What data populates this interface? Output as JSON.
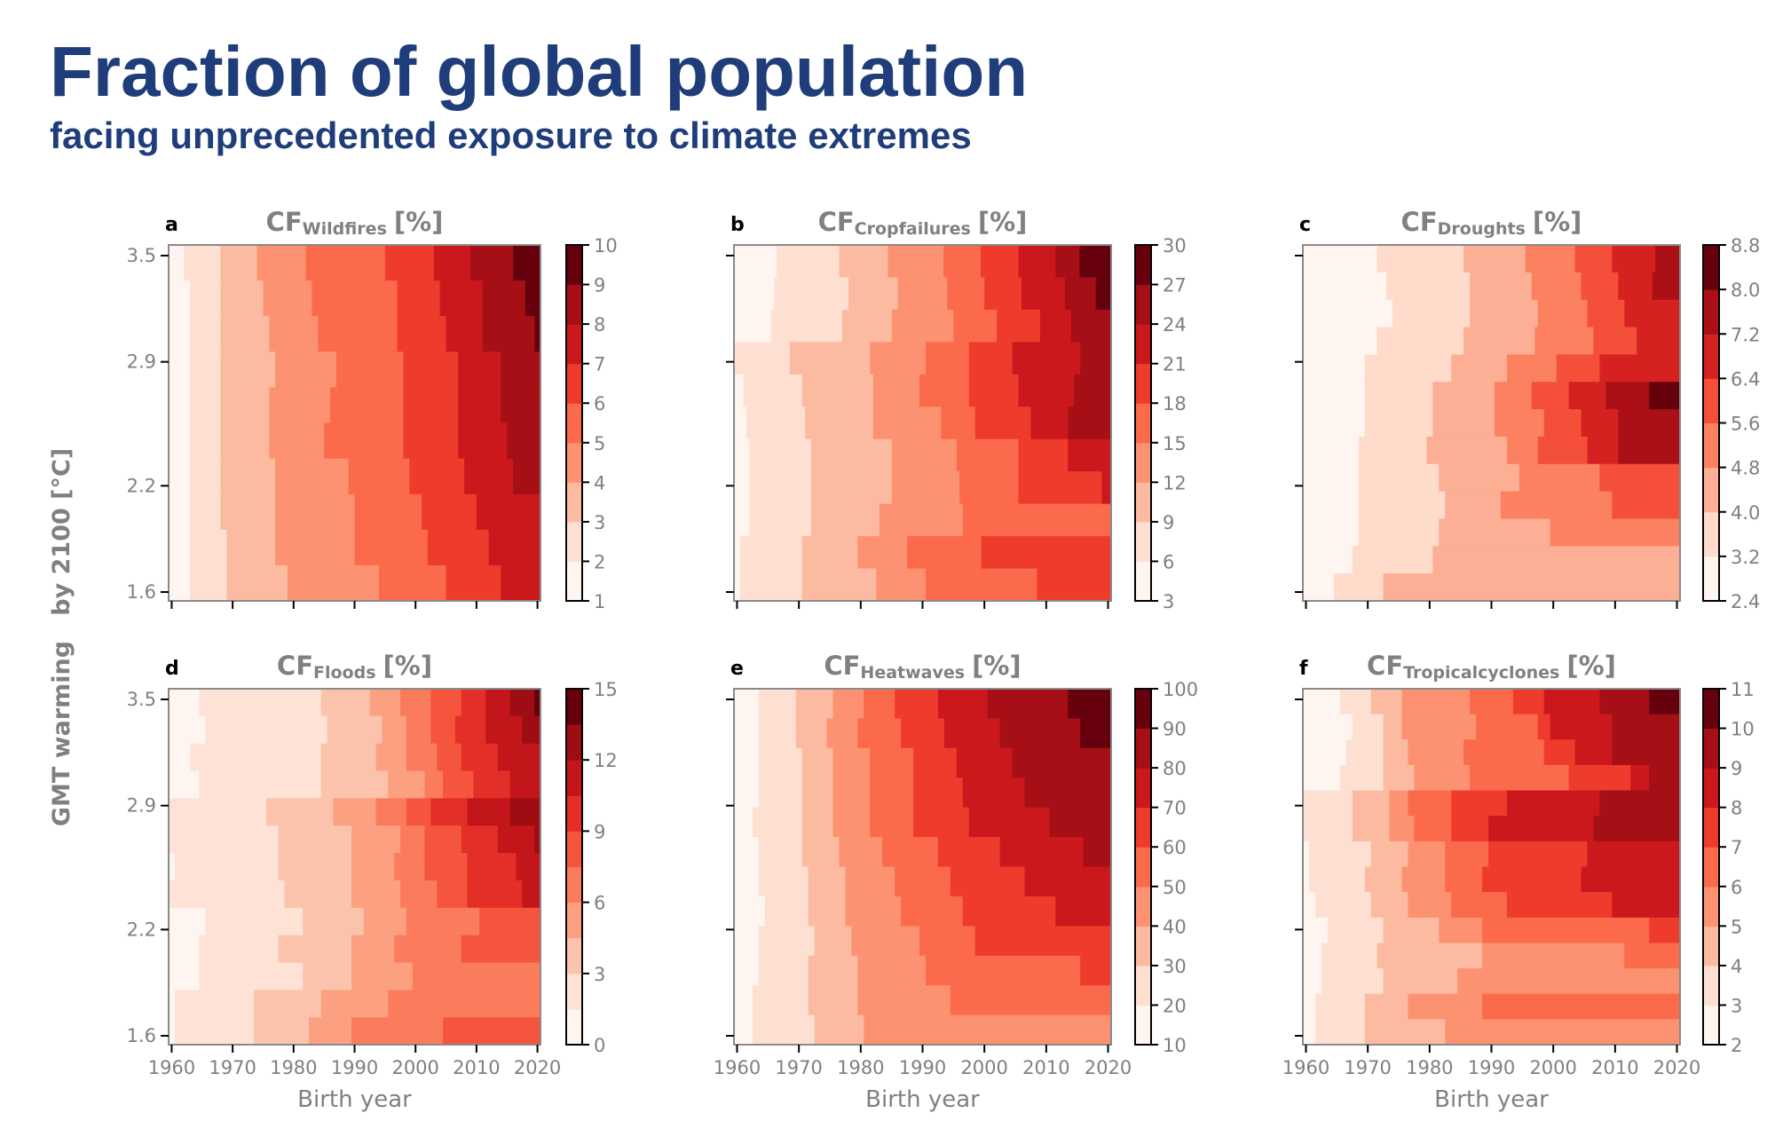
{
  "header": {
    "title": "Fraction of global population",
    "subtitle": "facing unprecedented exposure to climate extremes"
  },
  "axes": {
    "ylabel": "GMT warming   by 2100 [°C]",
    "xlabel": "Birth year"
  },
  "palette_anchors": [
    "#fff5f0",
    "#fee0d2",
    "#fcbba1",
    "#fc9272",
    "#fb6a4a",
    "#ef3b2c",
    "#cb181d",
    "#a50f15",
    "#67000d"
  ],
  "chart_data": [
    {
      "type": "heatmap",
      "letter": "a",
      "title_main": "CF",
      "title_sub": "Wildfires",
      "title_unit": "[%]",
      "xlim": [
        1959.5,
        2020.5
      ],
      "ylim": [
        1.55,
        3.56
      ],
      "xticks": [
        1960,
        1970,
        1980,
        1990,
        2000,
        2010,
        2020
      ],
      "yticks": [
        1.6,
        2.2,
        2.9,
        3.5
      ],
      "ytick_labels": [
        "1.6",
        "2.2",
        "2.9",
        "3.5"
      ],
      "colorbar": {
        "min": 1,
        "max": 10,
        "bins": 9,
        "ticks": [
          1,
          2,
          3,
          4,
          5,
          6,
          7,
          8,
          9,
          10
        ],
        "tick_labels": [
          "1",
          "2",
          "3",
          "4",
          "5",
          "6",
          "7",
          "8",
          "9",
          "10"
        ]
      },
      "level_breaks_by_row": [
        [
          1962,
          1968,
          1974,
          1982,
          1995,
          2003,
          2009,
          2016
        ],
        [
          1963,
          1968,
          1975,
          1983,
          1997,
          2004,
          2011,
          2018
        ],
        [
          1963,
          1968,
          1976,
          1984,
          1997,
          2005,
          2011,
          2019.5
        ],
        [
          1963,
          1968,
          1977,
          1987,
          1998,
          2007,
          2014
        ],
        [
          1963,
          1968,
          1976,
          1986,
          1998,
          2007,
          2014
        ],
        [
          1963,
          1968,
          1976,
          1985,
          1998,
          2007,
          2015
        ],
        [
          1963,
          1968,
          1977,
          1989,
          1999,
          2008,
          2016
        ],
        [
          1963,
          1968,
          1977,
          1990,
          2001,
          2010,
          2020.5
        ],
        [
          1963,
          1969,
          1977,
          1990,
          2002,
          2012
        ],
        [
          1963,
          1969,
          1979,
          1994,
          2005,
          2014
        ]
      ]
    },
    {
      "type": "heatmap",
      "letter": "b",
      "title_main": "CF",
      "title_sub": "Cropfailures",
      "title_unit": "[%]",
      "xlim": [
        1959.5,
        2020.5
      ],
      "ylim": [
        1.55,
        3.56
      ],
      "xticks": [
        1960,
        1970,
        1980,
        1990,
        2000,
        2010,
        2020
      ],
      "yticks": [
        1.6,
        2.2,
        2.9,
        3.5
      ],
      "ytick_labels": [
        "1.6",
        "2.2",
        "2.9",
        "3.5"
      ],
      "colorbar": {
        "min": 3,
        "max": 30,
        "bins": 9,
        "ticks": [
          3,
          6,
          9,
          12,
          15,
          18,
          21,
          24,
          27,
          30
        ],
        "tick_labels": [
          "3",
          "6",
          "9",
          "12",
          "15",
          "18",
          "21",
          "24",
          "27",
          "30"
        ]
      },
      "level_breaks_by_row": [
        [
          1966.4,
          1976.5,
          1984.4,
          1993.4,
          1999.4,
          2005.5,
          2011.5,
          2015.4
        ],
        [
          1966,
          1978,
          1986,
          1994,
          2000,
          2006,
          2013,
          2018
        ],
        [
          1965.5,
          1977,
          1985,
          1995,
          2002,
          2009,
          2014
        ],
        [
          1959.5,
          1968.5,
          1981.5,
          1990.5,
          1997.5,
          2004.5,
          2015.5
        ],
        [
          1961,
          1970.5,
          1982,
          1989.5,
          1997.5,
          2005.5,
          2014.5
        ],
        [
          1961.5,
          1971,
          1982,
          1993,
          1998.5,
          2007.5,
          2013.5
        ],
        [
          1962,
          1972,
          1985,
          1995.5,
          2005.5,
          2013.5
        ],
        [
          1962,
          1972,
          1985,
          1996,
          2005.5,
          2019
        ],
        [
          1962,
          1972,
          1983,
          1996.5
        ],
        [
          1960.5,
          1970.5,
          1979.5,
          1987.5,
          1999.5
        ],
        [
          1960.5,
          1970.5,
          1982.5,
          1990.5,
          2008.5
        ]
      ]
    },
    {
      "type": "heatmap",
      "letter": "c",
      "title_main": "CF",
      "title_sub": "Droughts",
      "title_unit": "[%]",
      "xlim": [
        1959.5,
        2020.5
      ],
      "ylim": [
        1.55,
        3.56
      ],
      "xticks": [
        1960,
        1970,
        1980,
        1990,
        2000,
        2010,
        2020
      ],
      "yticks": [
        1.6,
        2.2,
        2.9,
        3.5
      ],
      "ytick_labels": [
        "1.6",
        "2.2",
        "2.9",
        "3.5"
      ],
      "colorbar": {
        "min": 2.4,
        "max": 8.8,
        "bins": 8,
        "ticks": [
          2.4,
          3.2,
          4.0,
          4.8,
          5.6,
          6.4,
          7.2,
          8.0,
          8.8
        ],
        "tick_labels": [
          "2.4",
          "3.2",
          "4.0",
          "4.8",
          "5.6",
          "6.4",
          "7.2",
          "8.0",
          "8.8"
        ]
      },
      "level_breaks_by_row": [
        [
          1971.5,
          1985.5,
          1995.5,
          2003.5,
          2009.5,
          2016.5
        ],
        [
          1973,
          1986.5,
          1996.5,
          2004.5,
          2010.5,
          2016
        ],
        [
          1974,
          1986.5,
          1997.5,
          2005.5,
          2011.5
        ],
        [
          1971.5,
          1985.5,
          1997,
          2006.5,
          2013.5
        ],
        [
          1969.5,
          1983.5,
          1992.5,
          2000.5,
          2007.5
        ],
        [
          1969.5,
          1980.5,
          1990.5,
          1996.5,
          2002.5,
          2008.5,
          2015.5
        ],
        [
          1969.5,
          1980.5,
          1990.5,
          1998.5,
          2004.5,
          2010.5
        ],
        [
          1968.5,
          1979.5,
          1992.5,
          1997.5,
          2005.5,
          2010.5
        ],
        [
          1968.5,
          1981.5,
          1994.5,
          2007.5
        ],
        [
          1968.5,
          1982.5,
          1991.5,
          2009.5
        ],
        [
          1968.5,
          1981.5,
          1999.5
        ],
        [
          1967.5,
          1980.5
        ],
        [
          1964.5,
          1972.5
        ]
      ]
    },
    {
      "type": "heatmap",
      "letter": "d",
      "title_main": "CF",
      "title_sub": "Floods",
      "title_unit": "[%]",
      "xlim": [
        1959.5,
        2020.5
      ],
      "ylim": [
        1.55,
        3.56
      ],
      "xticks": [
        1960,
        1970,
        1980,
        1990,
        2000,
        2010,
        2020
      ],
      "xtick_labels": [
        "1960",
        "1970",
        "1980",
        "1990",
        "2000",
        "2010",
        "2020"
      ],
      "yticks": [
        1.6,
        2.2,
        2.9,
        3.5
      ],
      "ytick_labels": [
        "1.6",
        "2.2",
        "2.9",
        "3.5"
      ],
      "colorbar": {
        "min": 0,
        "max": 15,
        "bins": 10,
        "ticks": [
          0,
          3,
          6,
          9,
          12,
          15
        ],
        "tick_labels": [
          "0",
          "3",
          "6",
          "9",
          "12",
          "15"
        ]
      },
      "level_breaks_by_row": [
        [
          1964.5,
          1984.5,
          1992.5,
          1997.5,
          2002.5,
          2007.5,
          2011.5,
          2015.5,
          2019.5
        ],
        [
          1965.5,
          1985.5,
          1994.5,
          1998.5,
          2002.5,
          2006.5,
          2011.5,
          2017.5
        ],
        [
          1963,
          1984.5,
          1993.5,
          1998.5,
          2003.5,
          2007.5,
          2013.5
        ],
        [
          1964.5,
          1984.5,
          1995.5,
          2001.5,
          2004.5,
          2009.5,
          2015.5
        ],
        [
          1959.5,
          1975.5,
          1986.5,
          1993.5,
          1998.5,
          2002.5,
          2008.5,
          2015.5
        ],
        [
          1959.5,
          1977.5,
          1989.5,
          1997.5,
          2001.5,
          2007.5,
          2013.5,
          2019.5
        ],
        [
          1960.5,
          1977.5,
          1989.5,
          1996.5,
          2001.5,
          2008.5,
          2016.5
        ],
        [
          1959.5,
          1978.5,
          1989.5,
          1997.5,
          2003.5,
          2008.5,
          2017.5
        ],
        [
          1965.5,
          1981.5,
          1991.5,
          1998.5,
          2010.5
        ],
        [
          1964.5,
          1977.5,
          1989.5,
          1996.5,
          2007.5
        ],
        [
          1964.5,
          1981.5,
          1989.5,
          1999.5
        ],
        [
          1960.5,
          1973.5,
          1984.5,
          1995.5
        ],
        [
          1960.5,
          1973.5,
          1982.5,
          1989.5,
          2004.5
        ]
      ]
    },
    {
      "type": "heatmap",
      "letter": "e",
      "title_main": "CF",
      "title_sub": "Heatwaves",
      "title_unit": "[%]",
      "xlim": [
        1959.5,
        2020.5
      ],
      "ylim": [
        1.55,
        3.56
      ],
      "xticks": [
        1960,
        1970,
        1980,
        1990,
        2000,
        2010,
        2020
      ],
      "xtick_labels": [
        "1960",
        "1970",
        "1980",
        "1990",
        "2000",
        "2010",
        "2020"
      ],
      "yticks": [
        1.6,
        2.2,
        2.9,
        3.5
      ],
      "ytick_labels": [
        "1.6",
        "2.2",
        "2.9",
        "3.5"
      ],
      "colorbar": {
        "min": 10,
        "max": 100,
        "bins": 9,
        "ticks": [
          10,
          20,
          30,
          40,
          50,
          60,
          70,
          80,
          90,
          100
        ],
        "tick_labels": [
          "10",
          "20",
          "30",
          "40",
          "50",
          "60",
          "70",
          "80",
          "90",
          "100"
        ]
      },
      "level_breaks_by_row": [
        [
          1963.5,
          1969.5,
          1975.5,
          1980.5,
          1985.5,
          1992.5,
          2000.5,
          2013.5
        ],
        [
          1963.5,
          1969.5,
          1974.5,
          1979.5,
          1986.5,
          1993.5,
          2002.5,
          2015.5
        ],
        [
          1963.5,
          1970.5,
          1975.5,
          1981.5,
          1988.5,
          1995.5,
          2004.5
        ],
        [
          1963.5,
          1970.5,
          1975.5,
          1981.5,
          1988.5,
          1996.5,
          2006.5
        ],
        [
          1962.5,
          1970.5,
          1975.5,
          1981.5,
          1988.5,
          1997.5,
          2010.5
        ],
        [
          1963.5,
          1970.5,
          1976.5,
          1983.5,
          1992.5,
          2002.5,
          2016
        ],
        [
          1963.5,
          1971.5,
          1977.5,
          1985.5,
          1994.5,
          2006.5
        ],
        [
          1964.5,
          1971.5,
          1977.5,
          1986.5,
          1996.5,
          2011.5
        ],
        [
          1963.5,
          1972.5,
          1978.5,
          1989.5,
          1998.5
        ],
        [
          1963.5,
          1971.5,
          1979.5,
          1990.5,
          2015.5
        ],
        [
          1962.5,
          1971.5,
          1979.5,
          1994.5
        ],
        [
          1962.5,
          1972.5,
          1980.5
        ]
      ]
    },
    {
      "type": "heatmap",
      "letter": "f",
      "title_main": "CF",
      "title_sub": "Tropicalcyclones",
      "title_unit": "[%]",
      "xlim": [
        1959.5,
        2020.5
      ],
      "ylim": [
        1.55,
        3.56
      ],
      "xticks": [
        1960,
        1970,
        1980,
        1990,
        2000,
        2010,
        2020
      ],
      "xtick_labels": [
        "1960",
        "1970",
        "1980",
        "1990",
        "2000",
        "2010",
        "2020"
      ],
      "yticks": [
        1.6,
        2.2,
        2.9,
        3.5
      ],
      "ytick_labels": [
        "1.6",
        "2.2",
        "2.9",
        "3.5"
      ],
      "colorbar": {
        "min": 2,
        "max": 11,
        "bins": 9,
        "ticks": [
          2,
          3,
          4,
          5,
          6,
          7,
          8,
          9,
          10,
          11
        ],
        "tick_labels": [
          "2",
          "3",
          "4",
          "5",
          "6",
          "7",
          "8",
          "9",
          "10",
          "11"
        ]
      },
      "level_breaks_by_row": [
        [
          1965.5,
          1970.5,
          1975.5,
          1986.5,
          1993.5,
          1998.5,
          2007.5,
          2015.5
        ],
        [
          1967.5,
          1972.5,
          1975.5,
          1987.5,
          1997.5,
          1999.5,
          2009.5
        ],
        [
          1966.5,
          1972.5,
          1976.5,
          1985.5,
          1998.5,
          2003.5,
          2009.5
        ],
        [
          1965.5,
          1972.5,
          1977.5,
          1986.5,
          2002.5,
          2012.5,
          2015.5
        ],
        [
          1959.5,
          1967.5,
          1973.5,
          1976.5,
          1983.5,
          1992.5,
          2007.5
        ],
        [
          1959.5,
          1967.5,
          1973.5,
          1977.5,
          1983.5,
          1989.5,
          2006.5
        ],
        [
          1960.5,
          1970.5,
          1976.5,
          1982.5,
          1989.5,
          2005.5
        ],
        [
          1960.5,
          1969.5,
          1975.5,
          1982.5,
          1988.5,
          2004.5
        ],
        [
          1961.5,
          1970.5,
          1976.5,
          1983.5,
          1992.5,
          2009.5
        ],
        [
          1963.5,
          1972.5,
          1981.5,
          1988.5,
          2015.5
        ],
        [
          1962.5,
          1971.5,
          1988.5,
          2011.5
        ],
        [
          1962.5,
          1972.5,
          1984.5
        ],
        [
          1961.5,
          1969.5,
          1976.5,
          1988.5
        ],
        [
          1961.5,
          1969.5,
          1982.5
        ]
      ]
    }
  ]
}
